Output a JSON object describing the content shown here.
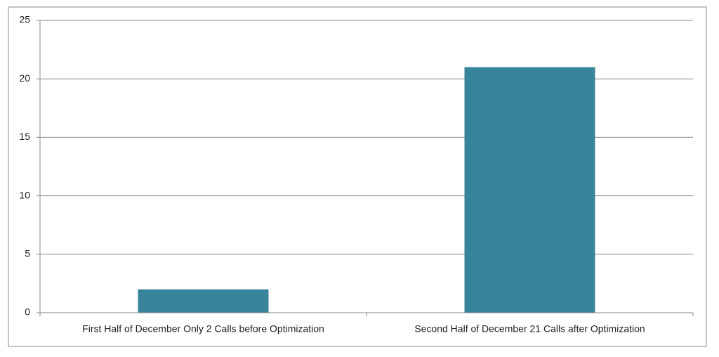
{
  "chart_data": {
    "type": "bar",
    "categories": [
      "First Half of December Only 2 Calls before Optimization",
      "Second Half of December 21 Calls after Optimization"
    ],
    "values": [
      2,
      21
    ],
    "color": "#38849a",
    "ylim": [
      0,
      25
    ],
    "yticks": [
      0,
      5,
      10,
      15,
      20,
      25
    ],
    "grid": true
  }
}
